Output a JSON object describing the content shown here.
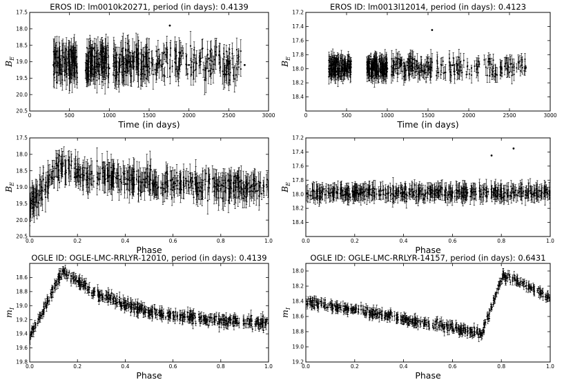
{
  "chart_data": [
    {
      "type": "scatter",
      "title": "EROS ID: lm0010k20271, period (in days): 0.4139",
      "xlabel": "Time (in days)",
      "ylabel": {
        "main": "B",
        "sub": "E"
      },
      "xlim": [
        0,
        3000
      ],
      "ylim": [
        20.5,
        17.5
      ],
      "y_inverted": true,
      "xticks": [
        "0",
        "500",
        "1000",
        "1500",
        "2000",
        "2500",
        "3000"
      ],
      "yticks": [
        "17.5",
        "18.0",
        "18.5",
        "19.0",
        "19.5",
        "20.0",
        "20.5"
      ],
      "error_bars": true,
      "series": [
        {
          "pattern": "time",
          "mean": 19.05,
          "amp": 0.9,
          "noise": 0.35,
          "err": 0.35,
          "x_ranges": [
            [
              300,
              600
            ],
            [
              700,
              1000
            ],
            [
              1050,
              1500
            ],
            [
              1500,
              2700
            ]
          ],
          "n": 520,
          "points_sample": [
            [
              300,
              19.1
            ],
            [
              500,
              19.0
            ],
            [
              800,
              18.6
            ],
            [
              1000,
              19.2
            ],
            [
              1250,
              19.0
            ],
            [
              1500,
              18.9
            ],
            [
              1760,
              17.9
            ],
            [
              2000,
              19.1
            ],
            [
              2250,
              18.9
            ],
            [
              2500,
              19.0
            ],
            [
              2700,
              19.1
            ]
          ]
        }
      ]
    },
    {
      "type": "scatter",
      "title": "EROS ID: lm0013l12014, period (in days): 0.4123",
      "xlabel": "Time (in days)",
      "ylabel": {
        "main": "B",
        "sub": "E"
      },
      "xlim": [
        0,
        3000
      ],
      "ylim": [
        18.6,
        17.2
      ],
      "y_inverted": true,
      "xticks": [
        "0",
        "500",
        "1000",
        "1500",
        "2000",
        "2500",
        "3000"
      ],
      "yticks": [
        "17.2",
        "17.4",
        "17.6",
        "17.8",
        "18.0",
        "18.2",
        "18.4"
      ],
      "error_bars": true,
      "series": [
        {
          "pattern": "time",
          "mean": 17.98,
          "amp": 0.25,
          "noise": 0.08,
          "err": 0.1,
          "x_ranges": [
            [
              280,
              560
            ],
            [
              750,
              1000
            ],
            [
              1050,
              1560
            ],
            [
              1600,
              2700
            ]
          ],
          "n": 520,
          "points_sample": [
            [
              320,
              17.95
            ],
            [
              540,
              17.98
            ],
            [
              800,
              18.0
            ],
            [
              1000,
              18.0
            ],
            [
              1300,
              18.0
            ],
            [
              1550,
              17.45
            ],
            [
              1800,
              17.95
            ],
            [
              2100,
              18.0
            ],
            [
              2400,
              18.0
            ],
            [
              2700,
              17.98
            ]
          ]
        }
      ]
    },
    {
      "type": "scatter",
      "xlabel": "Phase",
      "ylabel": {
        "main": "B",
        "sub": "E"
      },
      "xlim": [
        0.0,
        1.0
      ],
      "ylim": [
        20.5,
        17.5
      ],
      "y_inverted": true,
      "xticks": [
        "0.0",
        "0.2",
        "0.4",
        "0.6",
        "0.8",
        "1.0"
      ],
      "yticks": [
        "17.5",
        "18.0",
        "18.5",
        "19.0",
        "19.5",
        "20.0",
        "20.5"
      ],
      "error_bars": true,
      "series": [
        {
          "pattern": "rrab_phase",
          "rise_start": 0.0,
          "peak_phase": 0.12,
          "min_mag": 19.6,
          "max_mag": 18.35,
          "end_mag": 19.0,
          "noise": 0.3,
          "err": 0.35,
          "n": 520,
          "points_sample": [
            [
              0.0,
              19.6
            ],
            [
              0.05,
              19.0
            ],
            [
              0.12,
              18.35
            ],
            [
              0.2,
              18.55
            ],
            [
              0.4,
              18.9
            ],
            [
              0.6,
              19.0
            ],
            [
              0.8,
              19.05
            ],
            [
              1.0,
              19.1
            ]
          ]
        }
      ]
    },
    {
      "type": "scatter",
      "xlabel": "Phase",
      "ylabel": {
        "main": "B",
        "sub": "E"
      },
      "xlim": [
        0.0,
        1.0
      ],
      "ylim": [
        18.6,
        17.2
      ],
      "y_inverted": true,
      "xticks": [
        "0.0",
        "0.2",
        "0.4",
        "0.6",
        "0.8",
        "1.0"
      ],
      "yticks": [
        "17.2",
        "17.4",
        "17.6",
        "17.8",
        "18.0",
        "18.2",
        "18.4"
      ],
      "error_bars": true,
      "series": [
        {
          "pattern": "flat_phase",
          "mean": 17.98,
          "noise": 0.07,
          "err": 0.1,
          "n": 520,
          "points_sample": [
            [
              0.0,
              17.98
            ],
            [
              0.2,
              17.98
            ],
            [
              0.4,
              17.98
            ],
            [
              0.6,
              17.98
            ],
            [
              0.76,
              17.45
            ],
            [
              0.85,
              17.35
            ],
            [
              1.0,
              17.98
            ]
          ]
        }
      ]
    },
    {
      "type": "scatter",
      "title": "OGLE ID: OGLE-LMC-RRLYR-12010, period (in days): 0.4139",
      "xlabel": "Phase",
      "ylabel": {
        "main": "m",
        "sub": "I"
      },
      "xlim": [
        0.0,
        1.0
      ],
      "ylim": [
        19.8,
        18.4
      ],
      "y_inverted": true,
      "xticks": [
        "0.0",
        "0.2",
        "0.4",
        "0.6",
        "0.8",
        "1.0"
      ],
      "yticks": [
        "18.6",
        "18.8",
        "19.0",
        "19.2",
        "19.4",
        "19.6",
        "19.8"
      ],
      "error_bars": true,
      "series": [
        {
          "pattern": "rrab_phase",
          "rise_start": 0.0,
          "peak_phase": 0.14,
          "min_mag": 19.45,
          "max_mag": 18.5,
          "end_mag": 19.25,
          "noise": 0.06,
          "err": 0.06,
          "n": 520,
          "points_sample": [
            [
              0.0,
              19.45
            ],
            [
              0.07,
              19.0
            ],
            [
              0.14,
              18.5
            ],
            [
              0.2,
              18.65
            ],
            [
              0.4,
              18.95
            ],
            [
              0.6,
              19.1
            ],
            [
              0.8,
              19.2
            ],
            [
              1.0,
              19.25
            ]
          ]
        }
      ]
    },
    {
      "type": "scatter",
      "title": "OGLE ID: OGLE-LMC-RRLYR-14157, period (in days): 0.6431",
      "xlabel": "Phase",
      "ylabel": {
        "main": "m",
        "sub": "I"
      },
      "xlim": [
        0.0,
        1.0
      ],
      "ylim": [
        19.2,
        17.9
      ],
      "y_inverted": true,
      "xticks": [
        "0.0",
        "0.2",
        "0.4",
        "0.6",
        "0.8",
        "1.0"
      ],
      "yticks": [
        "18.0",
        "18.2",
        "18.4",
        "18.6",
        "18.8",
        "19.0",
        "19.2"
      ],
      "error_bars": true,
      "series": [
        {
          "pattern": "late_peak_phase",
          "start_mag": 18.4,
          "trough_mag": 18.82,
          "trough_phase": 0.72,
          "peak_phase": 0.81,
          "peak_mag": 18.05,
          "end_mag": 18.35,
          "noise": 0.05,
          "err": 0.05,
          "n": 520,
          "points_sample": [
            [
              0.0,
              18.4
            ],
            [
              0.2,
              18.55
            ],
            [
              0.4,
              18.7
            ],
            [
              0.6,
              18.78
            ],
            [
              0.72,
              18.82
            ],
            [
              0.81,
              18.05
            ],
            [
              0.9,
              18.2
            ],
            [
              1.0,
              18.35
            ]
          ]
        }
      ]
    }
  ]
}
